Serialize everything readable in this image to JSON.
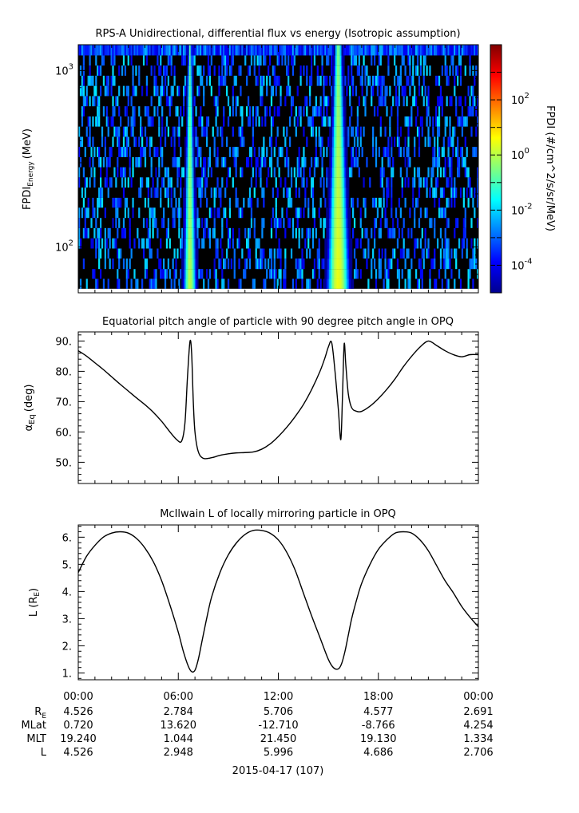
{
  "colors": {
    "line": "#000000",
    "spectrogram_background": "#000000"
  },
  "chart_data": [
    {
      "type": "heatmap",
      "title": "RPS-A Unidirectional, differential flux vs energy (Isotropic assumption)",
      "ylabel": "FPDI",
      "ylabel_sub": "Energy",
      "ylabel_unit": "(MeV)",
      "yscale": "log",
      "ylim": [
        55,
        1400
      ],
      "y_ticks": [
        {
          "base": "10",
          "exp": "2",
          "value": 100
        },
        {
          "base": "10",
          "exp": "3",
          "value": 1000
        }
      ],
      "x_range_hours": [
        0,
        24
      ],
      "colorbar": {
        "label": "FPDI (#/cm^2/s/sr/MeV)",
        "scale": "log",
        "range": [
          1e-05,
          10000.0
        ],
        "ticks": [
          {
            "base": "10",
            "exp": "2",
            "value": 100
          },
          {
            "base": "10",
            "exp": "0",
            "value": 1
          },
          {
            "base": "10",
            "exp": "-2",
            "value": 0.01
          },
          {
            "base": "10",
            "exp": "-4",
            "value": 0.0001
          }
        ],
        "colormap": [
          "#00008f",
          "#0000ff",
          "#0080ff",
          "#00ffff",
          "#80ff80",
          "#ffff00",
          "#ff8000",
          "#ff0000",
          "#800000"
        ]
      },
      "energy_bins_mev": [
        58,
        66,
        75,
        86,
        98,
        112,
        128,
        146,
        167,
        190,
        217,
        248,
        283,
        323,
        369,
        421,
        481,
        549,
        627,
        716,
        818,
        934,
        1066,
        1217,
        1390
      ],
      "belt_crossings": [
        {
          "center_hour": 6.7,
          "half_width_low_energy_hours": 0.35,
          "half_width_high_energy_hours": 0.1,
          "peak_flux": 1
        },
        {
          "center_hour": 15.6,
          "half_width_low_energy_hours": 0.6,
          "half_width_high_energy_hours": 0.2,
          "peak_flux": 3
        }
      ]
    },
    {
      "type": "line",
      "title": "Equatorial pitch angle of particle with 90 degree pitch angle in OPQ",
      "ylabel": "α",
      "ylabel_sub": "Eq",
      "ylabel_unit": "(deg)",
      "ylim": [
        43,
        93
      ],
      "y_ticks": [
        50.0,
        60.0,
        70.0,
        80.0,
        90.0
      ],
      "y_tick_labels": [
        "50.",
        "60.",
        "70.",
        "80.",
        "90."
      ],
      "x": [
        0.0,
        0.5,
        1.0,
        1.5,
        2.0,
        2.5,
        3.0,
        3.5,
        4.0,
        4.5,
        5.0,
        5.5,
        5.9,
        6.2,
        6.4,
        6.55,
        6.7,
        6.8,
        6.9,
        7.0,
        7.2,
        7.5,
        8.0,
        8.5,
        9.0,
        9.5,
        10.0,
        10.5,
        11.0,
        11.5,
        12.0,
        12.5,
        13.0,
        13.5,
        14.0,
        14.5,
        14.8,
        15.0,
        15.2,
        15.4,
        15.6,
        15.75,
        15.85,
        15.95,
        16.05,
        16.2,
        16.4,
        16.7,
        17.0,
        17.5,
        18.0,
        18.5,
        19.0,
        19.5,
        20.0,
        20.5,
        21.0,
        21.5,
        22.0,
        22.5,
        23.0,
        23.5,
        24.0
      ],
      "y": [
        86.8,
        85.0,
        82.8,
        80.6,
        78.2,
        75.8,
        73.5,
        71.2,
        69.0,
        66.5,
        63.5,
        60.0,
        57.5,
        57.0,
        63.0,
        78.0,
        89.8,
        86.0,
        70.0,
        60.0,
        53.5,
        51.3,
        51.5,
        52.3,
        52.8,
        53.1,
        53.2,
        53.4,
        54.3,
        56.0,
        58.5,
        61.5,
        65.0,
        69.0,
        74.0,
        80.0,
        84.5,
        88.0,
        89.5,
        80.0,
        67.5,
        57.5,
        72.0,
        89.0,
        82.0,
        72.5,
        68.0,
        66.8,
        66.8,
        68.5,
        71.0,
        74.0,
        77.5,
        81.5,
        85.0,
        88.0,
        90.0,
        88.5,
        86.8,
        85.5,
        84.8,
        85.5,
        85.5
      ]
    },
    {
      "type": "line",
      "title": "McIlwain L of locally mirroring particle in OPQ",
      "ylabel": "L (R",
      "ylabel_sub": "E",
      "ylabel_unit": ")",
      "ylim": [
        0.75,
        6.45
      ],
      "y_ticks": [
        1.0,
        2.0,
        3.0,
        4.0,
        5.0,
        6.0
      ],
      "y_tick_labels": [
        "1.",
        "2.",
        "3.",
        "4.",
        "5.",
        "6."
      ],
      "x": [
        0.0,
        0.5,
        1.0,
        1.5,
        2.0,
        2.5,
        3.0,
        3.5,
        4.0,
        4.5,
        5.0,
        5.5,
        6.0,
        6.3,
        6.6,
        6.8,
        7.0,
        7.2,
        7.4,
        7.7,
        8.0,
        8.5,
        9.0,
        9.5,
        10.0,
        10.5,
        11.0,
        11.5,
        12.0,
        12.5,
        13.0,
        13.5,
        14.0,
        14.5,
        15.0,
        15.3,
        15.6,
        15.8,
        16.0,
        16.2,
        16.4,
        16.7,
        17.0,
        17.5,
        18.0,
        18.5,
        19.0,
        19.5,
        20.0,
        20.5,
        21.0,
        21.5,
        22.0,
        22.5,
        23.0,
        23.5,
        24.0
      ],
      "y": [
        4.7,
        5.3,
        5.7,
        6.0,
        6.15,
        6.2,
        6.15,
        5.95,
        5.6,
        5.1,
        4.4,
        3.5,
        2.5,
        1.8,
        1.25,
        1.05,
        1.1,
        1.5,
        2.1,
        3.0,
        3.8,
        4.7,
        5.35,
        5.8,
        6.1,
        6.25,
        6.25,
        6.15,
        5.9,
        5.45,
        4.8,
        3.95,
        3.1,
        2.3,
        1.5,
        1.2,
        1.15,
        1.35,
        1.8,
        2.4,
        3.0,
        3.7,
        4.3,
        5.0,
        5.55,
        5.9,
        6.15,
        6.2,
        6.15,
        5.9,
        5.5,
        4.95,
        4.4,
        3.95,
        3.45,
        3.05,
        2.7
      ]
    }
  ],
  "x_axis": {
    "ticks": [
      "00:00",
      "06:00",
      "12:00",
      "18:00",
      "00:00"
    ],
    "date_label": "2015-04-17 (107)",
    "ephemeris": [
      {
        "name": "R",
        "sub": "E",
        "values": [
          "4.526",
          "2.784",
          "5.706",
          "4.577",
          "2.691"
        ]
      },
      {
        "name": "MLat",
        "sub": "",
        "values": [
          "0.720",
          "13.620",
          "-12.710",
          "-8.766",
          "4.254"
        ]
      },
      {
        "name": "MLT",
        "sub": "",
        "values": [
          "19.240",
          "1.044",
          "21.450",
          "19.130",
          "1.334"
        ]
      },
      {
        "name": "L",
        "sub": "",
        "values": [
          "4.526",
          "2.948",
          "5.996",
          "4.686",
          "2.706"
        ]
      }
    ]
  }
}
